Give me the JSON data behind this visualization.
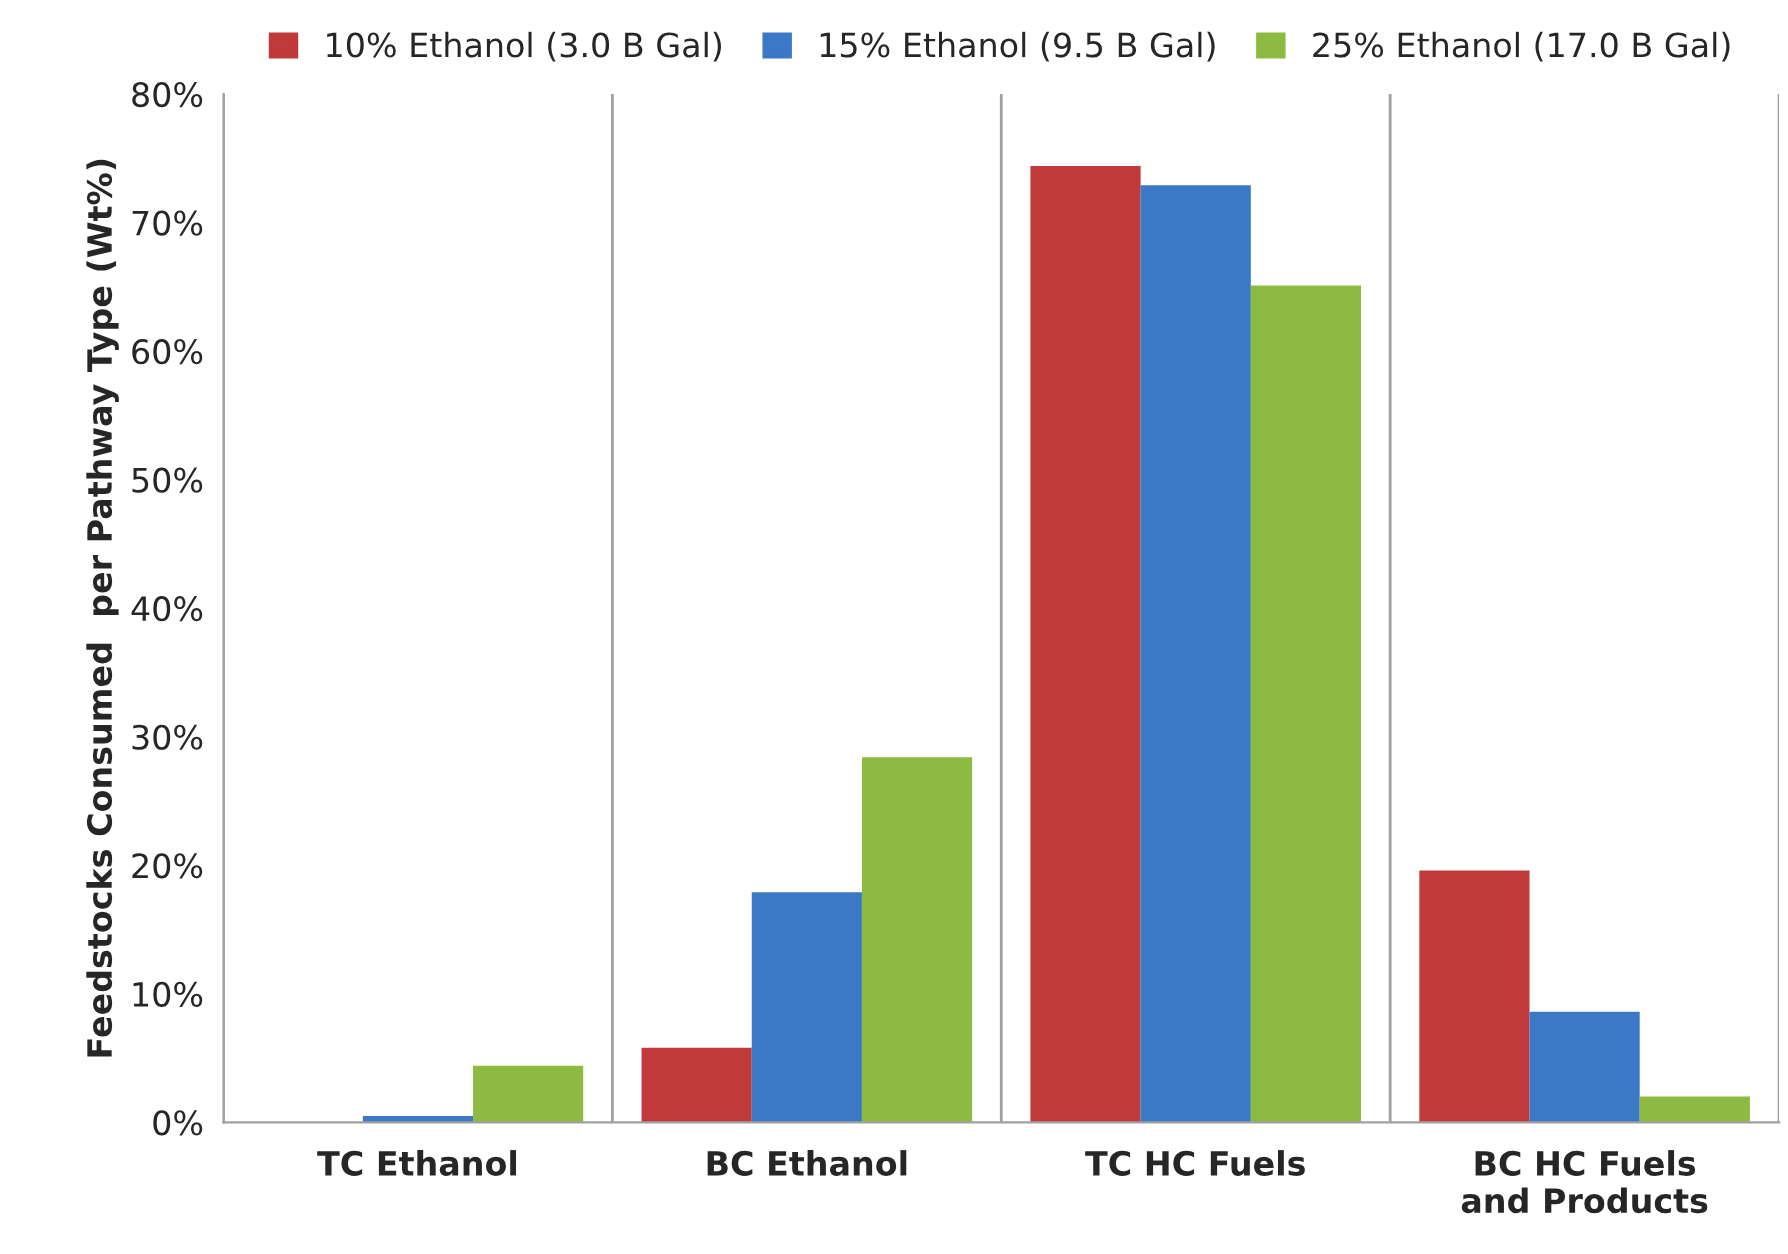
{
  "chart_data": {
    "type": "bar",
    "ylabel": "Feedstocks Consumed  per Pathway Type (Wt%)",
    "categories": [
      "TC Ethanol",
      "BC Ethanol",
      "TC HC Fuels",
      "BC HC Fuels\nand Products"
    ],
    "series": [
      {
        "name": "10% Ethanol (3.0 B Gal)",
        "color": "#c0393b",
        "values": [
          0,
          5.8,
          74.4,
          19.6
        ]
      },
      {
        "name": "15% Ethanol (9.5 B Gal)",
        "color": "#3b78c6",
        "values": [
          0.5,
          17.9,
          72.9,
          8.6
        ]
      },
      {
        "name": "25% Ethanol (17.0 B Gal)",
        "color": "#8dba40",
        "values": [
          4.4,
          28.4,
          65.1,
          2.0
        ]
      }
    ],
    "ylim": [
      0,
      80
    ],
    "yticks": [
      {
        "value": 0,
        "label": "0%"
      },
      {
        "value": 10,
        "label": "10%"
      },
      {
        "value": 20,
        "label": "20%"
      },
      {
        "value": 30,
        "label": "30%"
      },
      {
        "value": 40,
        "label": "40%"
      },
      {
        "value": 50,
        "label": "50%"
      },
      {
        "value": 60,
        "label": "60%"
      },
      {
        "value": 70,
        "label": "70%"
      },
      {
        "value": 80,
        "label": "80%"
      }
    ],
    "grid": "x",
    "legend": "top"
  }
}
